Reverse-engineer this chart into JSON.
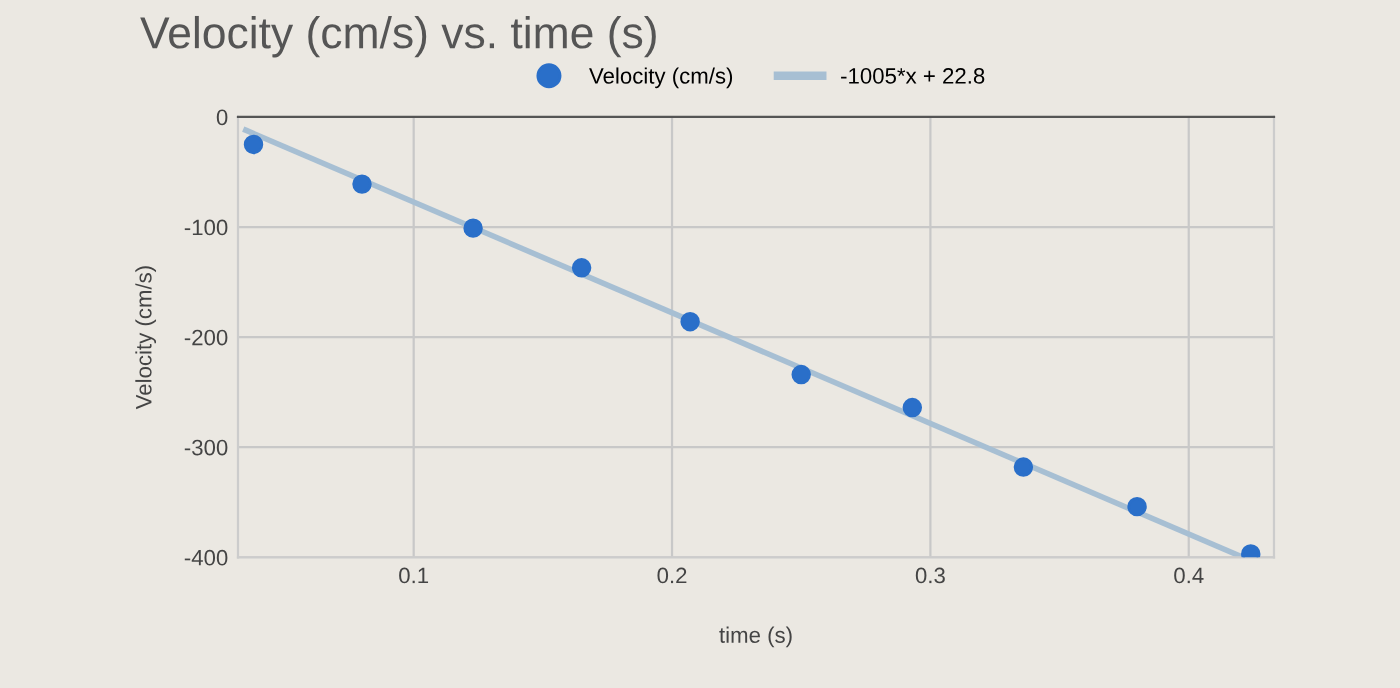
{
  "chart_data": {
    "type": "scatter",
    "title": "Velocity (cm/s) vs. time (s)",
    "xlabel": "time (s)",
    "ylabel": "Velocity (cm/s)",
    "x": [
      0.038,
      0.08,
      0.123,
      0.165,
      0.207,
      0.25,
      0.293,
      0.336,
      0.38,
      0.424
    ],
    "series": [
      {
        "name": "Velocity (cm/s)",
        "marker": "circle",
        "color": "#2a6fc9",
        "values": [
          -25,
          -61,
          -101,
          -137,
          -186,
          -234,
          -264,
          -318,
          -354,
          -397
        ]
      },
      {
        "name": "-1005*x + 22.8",
        "type": "line",
        "marker": "none",
        "color": "#a7bfd3",
        "x": [
          0.035,
          0.42
        ],
        "values": [
          -12,
          -399
        ]
      }
    ],
    "xlim": [
      0.032,
      0.433
    ],
    "ylim": [
      -400,
      0
    ],
    "xticks": [
      0.1,
      0.2,
      0.3,
      0.4
    ],
    "yticks": [
      0,
      -100,
      -200,
      -300,
      -400
    ],
    "grid": true,
    "legend": "top"
  }
}
